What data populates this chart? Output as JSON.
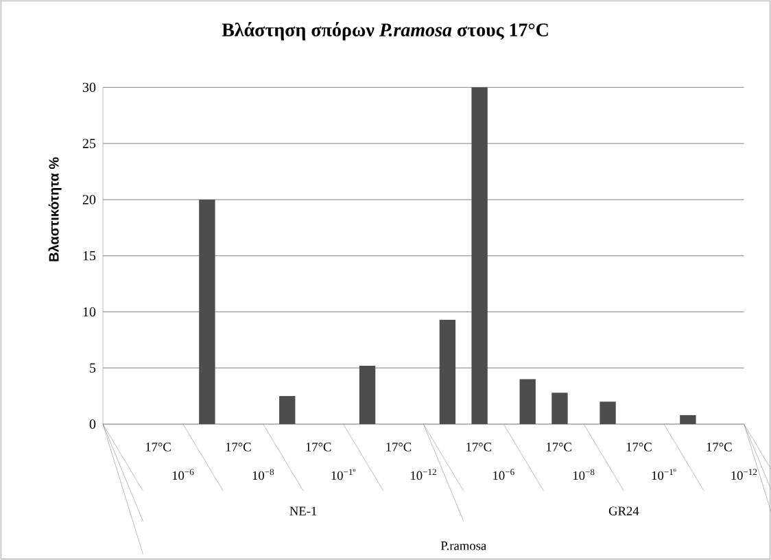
{
  "chart_data": {
    "type": "bar",
    "title": "Βλάστηση σπόρων *P.ramosa* στους 17°C",
    "ylabel": "Βλαστικότητα %",
    "categories": [
      "17°C",
      "17°C",
      "17°C",
      "17°C",
      "17°C",
      "17°C",
      "17°C",
      "17°C"
    ],
    "series": [
      {
        "color": "#4d4d4d",
        "values": [
          0,
          20,
          2.5,
          5.2,
          9.3,
          4,
          2,
          0.8
        ]
      },
      {
        "color": "#4d4d4d",
        "values": [
          0,
          0,
          0,
          0,
          30,
          2.8,
          0,
          0
        ]
      }
    ],
    "ylim": [
      0,
      30
    ],
    "yticks": [
      0,
      5,
      10,
      15,
      20,
      25,
      30
    ],
    "grid": "y",
    "annotations": [
      "10$^{−6}$",
      "10$^{−8}$",
      "10$^{−1º}$",
      "10$^{−12}$",
      "10$^{−6}$",
      "10$^{−8}$",
      "10$^{−1º}$",
      "10$^{−12}$",
      "NE-1",
      "GR24",
      "P.ramosa"
    ]
  }
}
